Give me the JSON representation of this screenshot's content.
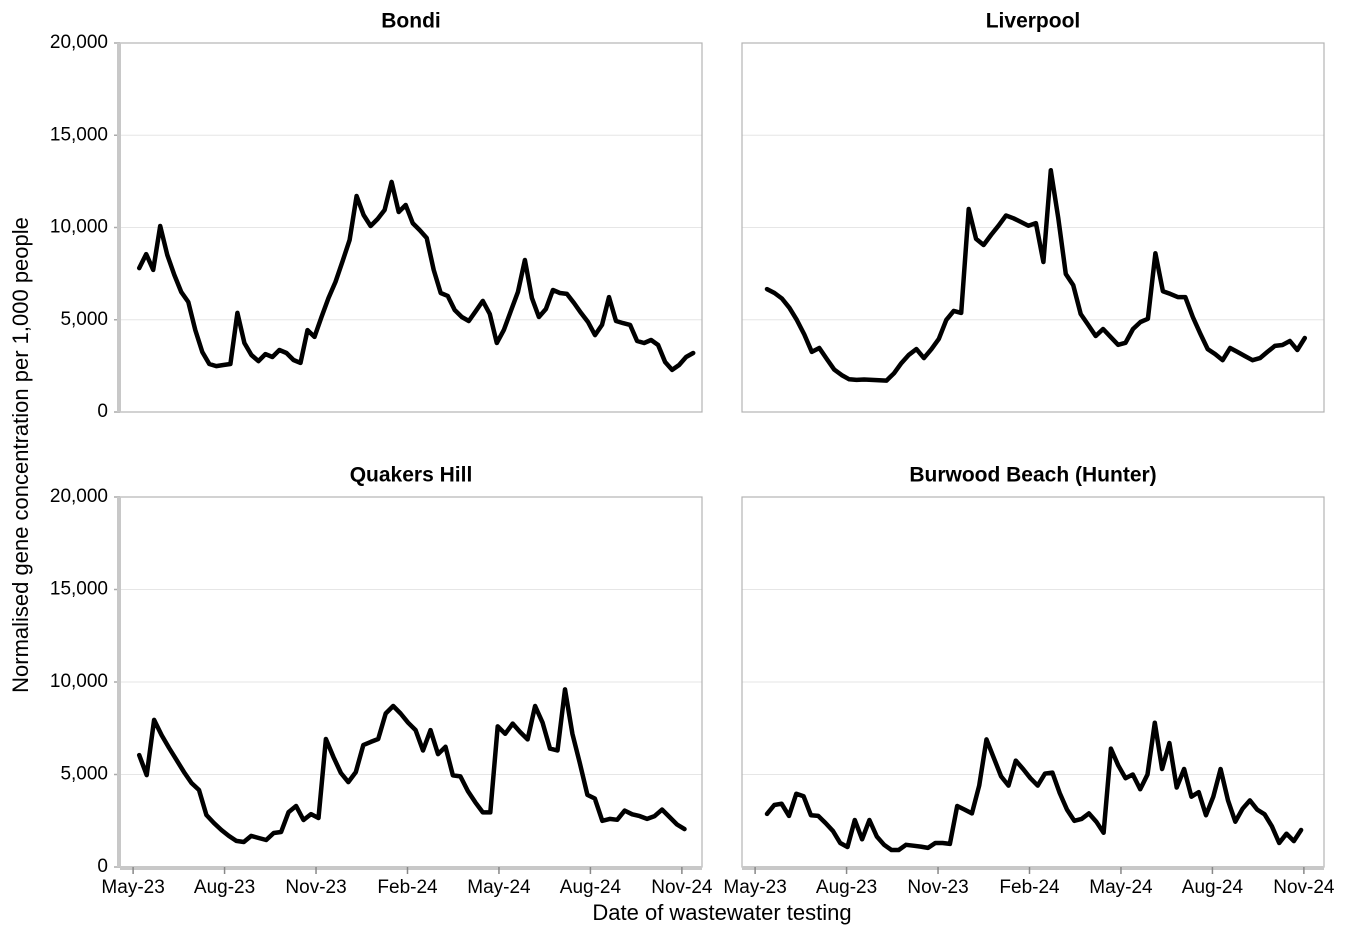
{
  "y_label": "Normalised gene concentration per 1,000 people",
  "x_label": "Date of wastewater testing",
  "chart_data": [
    {
      "type": "line",
      "title": "Bondi",
      "color": "#000000",
      "grid": true,
      "xlim": [
        -0.43,
        18.66
      ],
      "ylim": [
        0,
        20000
      ],
      "yticks": [
        {
          "value": 0,
          "label": "0"
        },
        {
          "value": 5000,
          "label": "5,000"
        },
        {
          "value": 10000,
          "label": "10,000"
        },
        {
          "value": 15000,
          "label": "15,000"
        },
        {
          "value": 20000,
          "label": "20,000"
        }
      ],
      "x": [
        0.2,
        0.43,
        0.66,
        0.89,
        1.12,
        1.35,
        1.58,
        1.81,
        2.04,
        2.27,
        2.5,
        2.73,
        2.96,
        3.19,
        3.42,
        3.65,
        3.88,
        4.11,
        4.34,
        4.57,
        4.8,
        5.03,
        5.26,
        5.49,
        5.72,
        5.95,
        6.18,
        6.41,
        6.64,
        6.87,
        7.1,
        7.33,
        7.56,
        7.79,
        8.02,
        8.25,
        8.48,
        8.71,
        8.94,
        9.17,
        9.4,
        9.63,
        9.86,
        10.09,
        10.32,
        10.55,
        10.78,
        11.01,
        11.24,
        11.47,
        11.7,
        11.93,
        12.16,
        12.39,
        12.62,
        12.85,
        13.08,
        13.31,
        13.54,
        13.77,
        14.0,
        14.23,
        14.46,
        14.69,
        14.92,
        15.15,
        15.38,
        15.61,
        15.84,
        16.07,
        16.3,
        16.53,
        16.76,
        16.99,
        17.22,
        17.45,
        17.68,
        17.91,
        18.14,
        18.37
      ],
      "values": [
        7800,
        8560,
        7700,
        10080,
        8510,
        7430,
        6500,
        5960,
        4440,
        3250,
        2600,
        2490,
        2550,
        2600,
        5370,
        3740,
        3090,
        2760,
        3140,
        2980,
        3360,
        3200,
        2820,
        2660,
        4440,
        4070,
        5150,
        6180,
        7050,
        8180,
        9320,
        11710,
        10680,
        10080,
        10460,
        10950,
        12470,
        10840,
        11220,
        10240,
        9860,
        9430,
        7700,
        6450,
        6290,
        5530,
        5150,
        4930,
        5470,
        6020,
        5310,
        3740,
        4440,
        5470,
        6500,
        8240,
        6180,
        5150,
        5580,
        6610,
        6450,
        6400,
        5910,
        5370,
        4880,
        4170,
        4720,
        6230,
        4930,
        4820,
        4720,
        3850,
        3740,
        3900,
        3630,
        2710,
        2280,
        2550,
        2980,
        3200
      ]
    },
    {
      "type": "line",
      "title": "Liverpool",
      "color": "#000000",
      "grid": true,
      "xlim": [
        -0.43,
        18.66
      ],
      "ylim": [
        0,
        20000
      ],
      "yticks": [
        0,
        5000,
        10000,
        15000,
        20000
      ],
      "x": [
        0.39,
        0.635,
        0.88,
        1.125,
        1.37,
        1.615,
        1.86,
        2.105,
        2.35,
        2.595,
        2.84,
        3.085,
        3.33,
        3.575,
        3.82,
        4.065,
        4.31,
        4.555,
        4.8,
        5.045,
        5.29,
        5.535,
        5.78,
        6.025,
        6.27,
        6.515,
        6.76,
        7.005,
        7.25,
        7.495,
        7.74,
        7.985,
        8.23,
        8.475,
        8.72,
        8.965,
        9.21,
        9.455,
        9.7,
        9.945,
        10.19,
        10.435,
        10.68,
        10.925,
        11.17,
        11.415,
        11.66,
        11.905,
        12.15,
        12.395,
        12.64,
        12.885,
        13.13,
        13.375,
        13.62,
        13.865,
        14.11,
        14.355,
        14.6,
        14.845,
        15.09,
        15.335,
        15.58,
        15.825,
        16.07,
        16.315,
        16.56,
        16.805,
        17.05,
        17.295,
        17.54,
        17.785,
        18.03
      ],
      "values": [
        6660,
        6450,
        6150,
        5650,
        4980,
        4200,
        3260,
        3470,
        2870,
        2300,
        2000,
        1770,
        1740,
        1760,
        1740,
        1720,
        1700,
        2100,
        2650,
        3100,
        3410,
        2920,
        3400,
        3960,
        4990,
        5480,
        5370,
        11000,
        9380,
        9050,
        9600,
        10100,
        10650,
        10500,
        10300,
        10100,
        10240,
        8130,
        13100,
        10500,
        7480,
        6880,
        5310,
        4720,
        4120,
        4500,
        4070,
        3640,
        3750,
        4500,
        4880,
        5050,
        8600,
        6550,
        6400,
        6230,
        6230,
        5150,
        4260,
        3410,
        3140,
        2810,
        3470,
        3250,
        3030,
        2810,
        2920,
        3260,
        3580,
        3630,
        3850,
        3360,
        4010
      ]
    },
    {
      "type": "line",
      "title": "Quakers Hill",
      "color": "#000000",
      "grid": true,
      "xlim": [
        -0.43,
        18.66
      ],
      "ylim": [
        0,
        20000
      ],
      "yticks": [
        {
          "value": 0,
          "label": "0"
        },
        {
          "value": 5000,
          "label": "5,000"
        },
        {
          "value": 10000,
          "label": "10,000"
        },
        {
          "value": 15000,
          "label": "15,000"
        },
        {
          "value": 20000,
          "label": "20,000"
        }
      ],
      "xticks": [
        {
          "value": 0,
          "label": "May-23"
        },
        {
          "value": 3,
          "label": "Aug-23"
        },
        {
          "value": 6,
          "label": "Nov-23"
        },
        {
          "value": 9,
          "label": "Feb-24"
        },
        {
          "value": 12,
          "label": "May-24"
        },
        {
          "value": 15,
          "label": "Aug-24"
        },
        {
          "value": 18,
          "label": "Nov-24"
        }
      ],
      "x": [
        0.2,
        0.445,
        0.69,
        0.935,
        1.18,
        1.425,
        1.67,
        1.915,
        2.16,
        2.405,
        2.65,
        2.895,
        3.14,
        3.385,
        3.63,
        3.875,
        4.12,
        4.365,
        4.61,
        4.855,
        5.1,
        5.345,
        5.59,
        5.835,
        6.08,
        6.325,
        6.57,
        6.815,
        7.06,
        7.305,
        7.55,
        7.795,
        8.04,
        8.285,
        8.53,
        8.775,
        9.02,
        9.265,
        9.51,
        9.755,
        10.0,
        10.245,
        10.49,
        10.735,
        10.98,
        11.225,
        11.47,
        11.715,
        11.96,
        12.205,
        12.45,
        12.695,
        12.94,
        13.185,
        13.43,
        13.675,
        13.92,
        14.165,
        14.41,
        14.655,
        14.9,
        15.145,
        15.39,
        15.635,
        15.88,
        16.125,
        16.37,
        16.615,
        16.86,
        17.105,
        17.35,
        17.595,
        17.84,
        18.085
      ],
      "values": [
        6050,
        4970,
        7950,
        7130,
        6430,
        5780,
        5130,
        4540,
        4160,
        2810,
        2380,
        2000,
        1680,
        1410,
        1350,
        1680,
        1570,
        1460,
        1840,
        1890,
        2970,
        3300,
        2540,
        2860,
        2650,
        6920,
        5950,
        5080,
        4590,
        5130,
        6590,
        6760,
        6920,
        8300,
        8700,
        8300,
        7800,
        7400,
        6300,
        7400,
        6100,
        6500,
        4950,
        4900,
        4100,
        3500,
        2950,
        2950,
        7600,
        7200,
        7750,
        7300,
        6900,
        8700,
        7800,
        6400,
        6300,
        9600,
        7200,
        5600,
        3900,
        3700,
        2500,
        2600,
        2550,
        3050,
        2850,
        2750,
        2600,
        2750,
        3100,
        2700,
        2300,
        2050
      ]
    },
    {
      "type": "line",
      "title": "Burwood Beach (Hunter)",
      "color": "#000000",
      "grid": true,
      "xlim": [
        -0.43,
        18.66
      ],
      "ylim": [
        0,
        20000
      ],
      "yticks": [
        0,
        5000,
        10000,
        15000,
        20000
      ],
      "xticks": [
        {
          "value": 0,
          "label": "May-23"
        },
        {
          "value": 3,
          "label": "Aug-23"
        },
        {
          "value": 6,
          "label": "Nov-23"
        },
        {
          "value": 9,
          "label": "Feb-24"
        },
        {
          "value": 12,
          "label": "May-24"
        },
        {
          "value": 15,
          "label": "Aug-24"
        },
        {
          "value": 18,
          "label": "Nov-24"
        }
      ],
      "x": [
        0.39,
        0.63,
        0.87,
        1.11,
        1.35,
        1.59,
        1.83,
        2.07,
        2.31,
        2.55,
        2.79,
        3.03,
        3.27,
        3.51,
        3.75,
        3.99,
        4.23,
        4.47,
        4.71,
        4.95,
        5.19,
        5.43,
        5.67,
        5.91,
        6.15,
        6.39,
        6.63,
        6.87,
        7.11,
        7.35,
        7.59,
        7.83,
        8.07,
        8.31,
        8.55,
        8.79,
        9.03,
        9.27,
        9.51,
        9.75,
        9.99,
        10.23,
        10.47,
        10.71,
        10.95,
        11.19,
        11.43,
        11.67,
        11.91,
        12.15,
        12.39,
        12.63,
        12.87,
        13.11,
        13.35,
        13.59,
        13.83,
        14.07,
        14.31,
        14.55,
        14.79,
        15.03,
        15.27,
        15.51,
        15.75,
        15.99,
        16.23,
        16.47,
        16.71,
        16.95,
        17.19,
        17.43,
        17.67,
        17.91
      ],
      "values": [
        2870,
        3350,
        3420,
        2760,
        3960,
        3820,
        2800,
        2760,
        2380,
        1950,
        1300,
        1080,
        2540,
        1500,
        2540,
        1650,
        1200,
        920,
        920,
        1200,
        1150,
        1100,
        1030,
        1300,
        1300,
        1250,
        3300,
        3100,
        2900,
        4400,
        6900,
        5900,
        4900,
        4400,
        5750,
        5300,
        4800,
        4400,
        5050,
        5100,
        4000,
        3100,
        2500,
        2600,
        2900,
        2450,
        1850,
        6400,
        5500,
        4800,
        5000,
        4200,
        5000,
        7800,
        5300,
        6700,
        4300,
        5300,
        3800,
        4050,
        2800,
        3800,
        5300,
        3600,
        2450,
        3150,
        3600,
        3100,
        2850,
        2200,
        1300,
        1800,
        1400,
        2000
      ]
    }
  ]
}
